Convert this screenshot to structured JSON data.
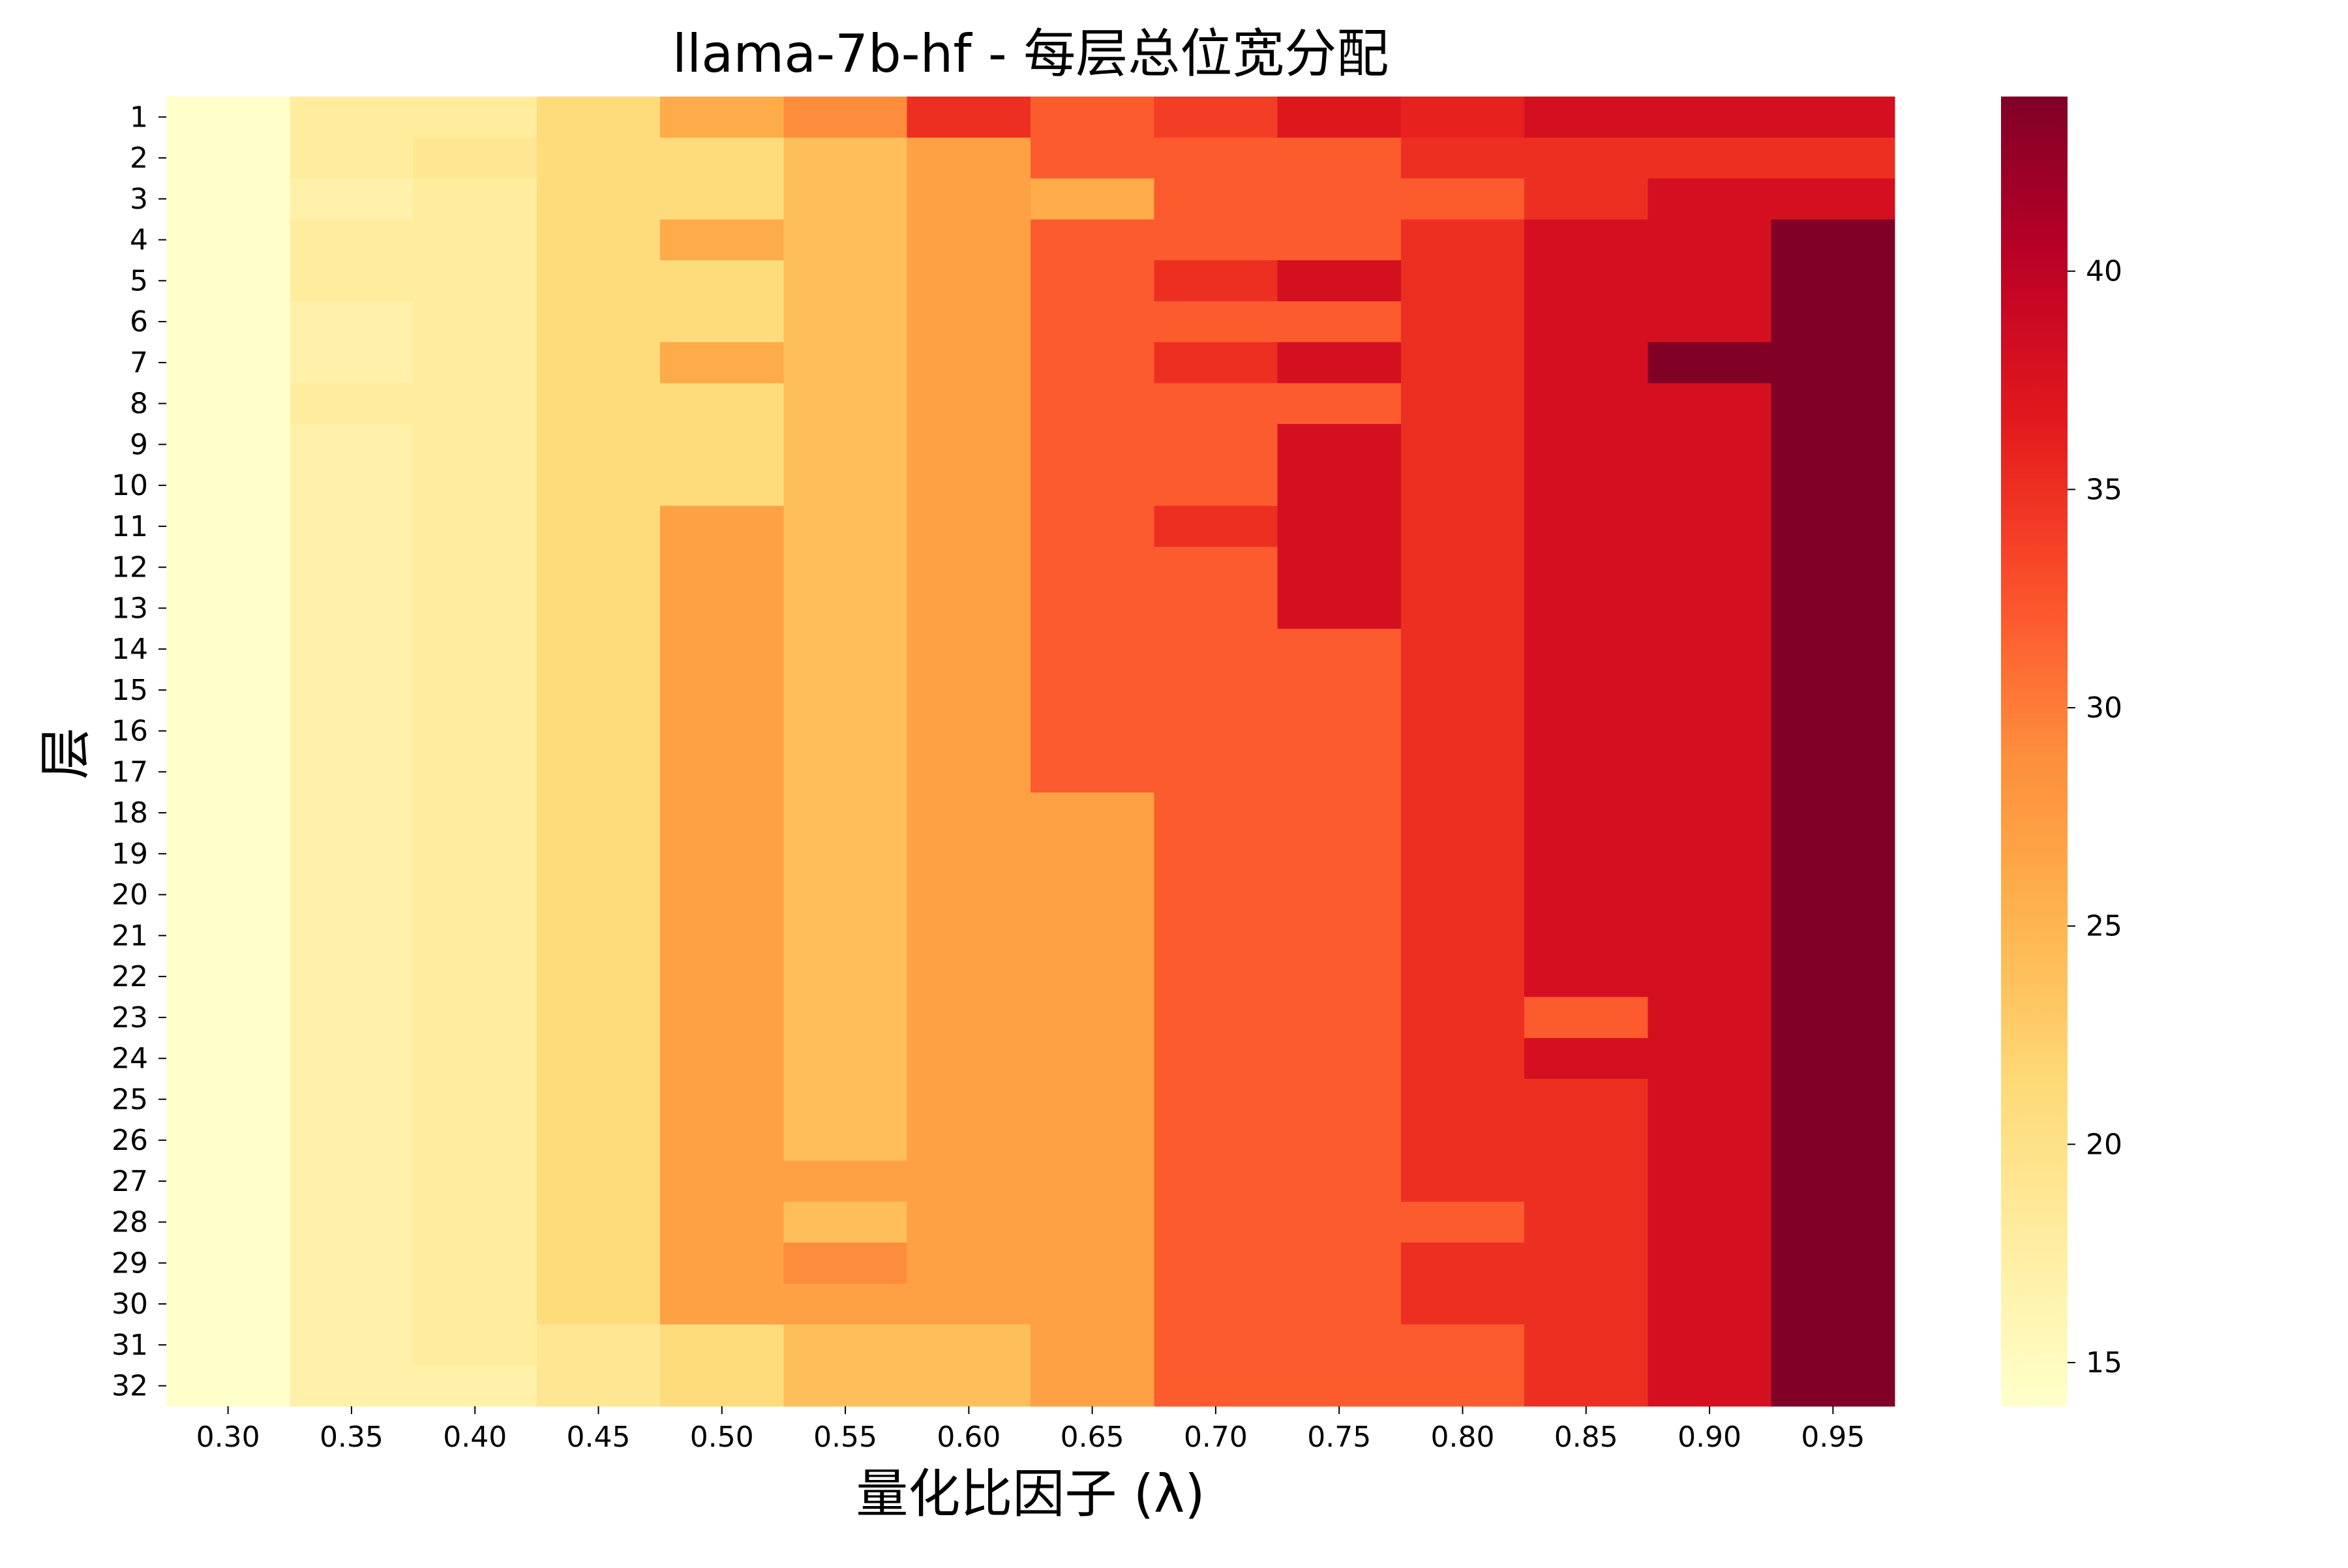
{
  "chart_data": {
    "type": "heatmap",
    "title": "llama-7b-hf - 每层总位宽分配",
    "xlabel": "量化比因子 (λ)",
    "ylabel": "层",
    "x": [
      "0.30",
      "0.35",
      "0.40",
      "0.45",
      "0.50",
      "0.55",
      "0.60",
      "0.65",
      "0.70",
      "0.75",
      "0.80",
      "0.85",
      "0.90",
      "0.95"
    ],
    "y": [
      "1",
      "2",
      "3",
      "4",
      "5",
      "6",
      "7",
      "8",
      "9",
      "10",
      "11",
      "12",
      "13",
      "14",
      "15",
      "16",
      "17",
      "18",
      "19",
      "20",
      "21",
      "22",
      "23",
      "24",
      "25",
      "26",
      "27",
      "28",
      "29",
      "30",
      "31",
      "32"
    ],
    "colorbar": {
      "range": [
        14,
        44
      ],
      "ticks": [
        "15",
        "20",
        "25",
        "30",
        "35",
        "40"
      ],
      "colormap": "YlOrRd"
    },
    "values": [
      [
        14,
        18,
        18,
        21,
        26,
        29,
        35,
        32,
        34,
        37,
        36,
        38,
        38,
        38
      ],
      [
        14,
        18,
        19,
        21,
        21,
        24,
        27,
        32,
        32,
        32,
        35,
        35,
        35,
        35
      ],
      [
        14,
        17,
        18,
        21,
        21,
        24,
        27,
        26,
        32,
        32,
        32,
        35,
        38,
        38
      ],
      [
        14,
        18,
        18,
        21,
        26,
        24,
        27,
        32,
        32,
        32,
        35,
        38,
        38,
        44
      ],
      [
        14,
        18,
        18,
        21,
        21,
        24,
        27,
        32,
        35,
        38,
        35,
        38,
        38,
        44
      ],
      [
        14,
        17,
        18,
        21,
        21,
        24,
        27,
        32,
        32,
        32,
        35,
        38,
        38,
        44
      ],
      [
        14,
        17,
        18,
        21,
        26,
        24,
        27,
        32,
        35,
        38,
        35,
        38,
        44,
        44
      ],
      [
        14,
        18,
        18,
        21,
        21,
        24,
        27,
        32,
        32,
        32,
        35,
        38,
        38,
        44
      ],
      [
        14,
        17,
        18,
        21,
        21,
        24,
        27,
        32,
        32,
        38,
        35,
        38,
        38,
        44
      ],
      [
        14,
        17,
        18,
        21,
        21,
        24,
        27,
        32,
        32,
        38,
        35,
        38,
        38,
        44
      ],
      [
        14,
        17,
        18,
        21,
        27,
        24,
        27,
        32,
        35,
        38,
        35,
        38,
        38,
        44
      ],
      [
        14,
        17,
        18,
        21,
        27,
        24,
        27,
        32,
        32,
        38,
        35,
        38,
        38,
        44
      ],
      [
        14,
        17,
        18,
        21,
        27,
        24,
        27,
        32,
        32,
        38,
        35,
        38,
        38,
        44
      ],
      [
        14,
        17,
        18,
        21,
        27,
        24,
        27,
        32,
        32,
        32,
        35,
        38,
        38,
        44
      ],
      [
        14,
        17,
        18,
        21,
        27,
        24,
        27,
        32,
        32,
        32,
        35,
        38,
        38,
        44
      ],
      [
        14,
        17,
        18,
        21,
        27,
        24,
        27,
        32,
        32,
        32,
        35,
        38,
        38,
        44
      ],
      [
        14,
        17,
        18,
        21,
        27,
        24,
        27,
        32,
        32,
        32,
        35,
        38,
        38,
        44
      ],
      [
        14,
        17,
        18,
        21,
        27,
        24,
        27,
        27,
        32,
        32,
        35,
        38,
        38,
        44
      ],
      [
        14,
        17,
        18,
        21,
        27,
        24,
        27,
        27,
        32,
        32,
        35,
        38,
        38,
        44
      ],
      [
        14,
        17,
        18,
        21,
        27,
        24,
        27,
        27,
        32,
        32,
        35,
        38,
        38,
        44
      ],
      [
        14,
        17,
        18,
        21,
        27,
        24,
        27,
        27,
        32,
        32,
        35,
        38,
        38,
        44
      ],
      [
        14,
        17,
        18,
        21,
        27,
        24,
        27,
        27,
        32,
        32,
        35,
        38,
        38,
        44
      ],
      [
        14,
        17,
        18,
        21,
        27,
        24,
        27,
        27,
        32,
        32,
        35,
        32,
        38,
        44
      ],
      [
        14,
        17,
        18,
        21,
        27,
        24,
        27,
        27,
        32,
        32,
        35,
        38,
        38,
        44
      ],
      [
        14,
        17,
        18,
        21,
        27,
        24,
        27,
        27,
        32,
        32,
        35,
        35,
        38,
        44
      ],
      [
        14,
        17,
        18,
        21,
        27,
        24,
        27,
        27,
        32,
        32,
        35,
        35,
        38,
        44
      ],
      [
        14,
        17,
        18,
        21,
        27,
        27,
        27,
        27,
        32,
        32,
        35,
        35,
        38,
        44
      ],
      [
        14,
        17,
        18,
        21,
        27,
        24,
        27,
        27,
        32,
        32,
        32,
        35,
        38,
        44
      ],
      [
        14,
        17,
        18,
        21,
        27,
        29,
        27,
        27,
        32,
        32,
        35,
        35,
        38,
        44
      ],
      [
        14,
        17,
        18,
        21,
        27,
        27,
        27,
        27,
        32,
        32,
        35,
        35,
        38,
        44
      ],
      [
        14,
        17,
        18,
        19,
        21,
        24,
        24,
        27,
        32,
        32,
        32,
        35,
        38,
        44
      ],
      [
        14,
        17,
        17,
        19,
        21,
        24,
        24,
        27,
        32,
        32,
        32,
        35,
        38,
        44
      ]
    ]
  }
}
